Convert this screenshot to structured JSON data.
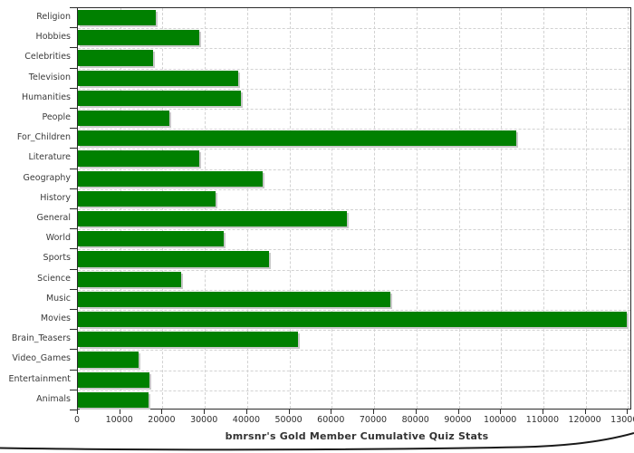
{
  "page": {
    "background": "#ffffff"
  },
  "chart_data": {
    "type": "bar",
    "orientation": "horizontal",
    "title": "bmrsnr's Gold Member Cumulative Quiz Stats",
    "categories": [
      "Religion",
      "Hobbies",
      "Celebrities",
      "Television",
      "Humanities",
      "People",
      "For_Children",
      "Literature",
      "Geography",
      "History",
      "General",
      "World",
      "Sports",
      "Science",
      "Music",
      "Movies",
      "Brain_Teasers",
      "Video_Games",
      "Entertainment",
      "Animals"
    ],
    "values": [
      18400,
      28600,
      17700,
      37900,
      38600,
      21600,
      103600,
      28700,
      43600,
      32600,
      63500,
      34500,
      45200,
      24400,
      73800,
      129800,
      51900,
      14400,
      17000,
      16600
    ],
    "xlabel": "",
    "ylabel": "",
    "xlim": [
      0,
      131000
    ],
    "xticks": [
      0,
      10000,
      20000,
      30000,
      40000,
      50000,
      60000,
      70000,
      80000,
      90000,
      100000,
      110000,
      120000,
      130000
    ],
    "xtick_labels": [
      "0",
      "10000",
      "20000",
      "30000",
      "40000",
      "50000",
      "60000",
      "70000",
      "80000",
      "90000",
      "100000",
      "110000",
      "120000",
      "130000"
    ],
    "grid": true,
    "legend_position": "none",
    "colors": {
      "bar": "#008000",
      "bar_shadow": "#c9c9c9",
      "grid": "#d2d2d2",
      "axis": "#2b2b2b",
      "text": "#3a3a3a"
    }
  }
}
